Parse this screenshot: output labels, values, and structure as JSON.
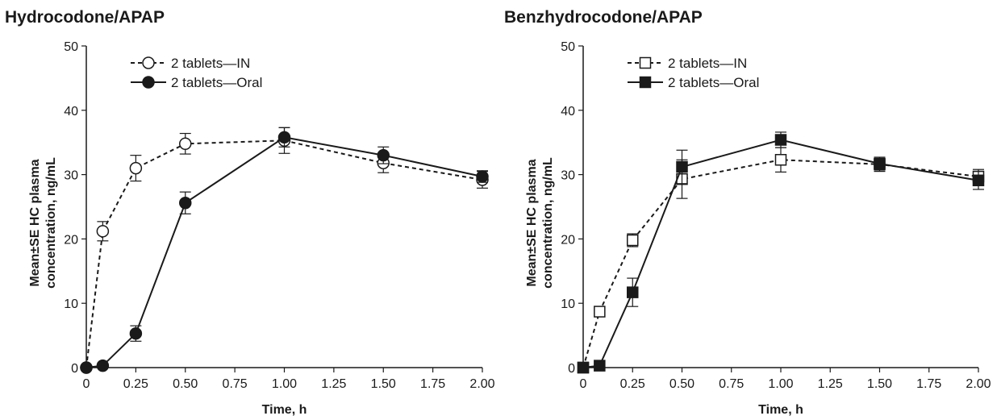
{
  "chart_data": [
    {
      "type": "line",
      "title": "Hydrocodone/APAP",
      "xlabel": "Time, h",
      "ylabel": [
        "Mean±SE HC plasma",
        "concentration, ng/mL"
      ],
      "xlim": [
        0,
        2
      ],
      "ylim": [
        0,
        50
      ],
      "xticks": [
        "0",
        "0.25",
        "0.50",
        "0.75",
        "1.00",
        "1.25",
        "1.50",
        "1.75",
        "2.00"
      ],
      "yticks": [
        "0",
        "10",
        "20",
        "30",
        "40",
        "50"
      ],
      "grid": false,
      "legend_position": "top-left",
      "series": [
        {
          "name": "2 tablets—IN",
          "marker": "circle-open",
          "line": "dashed",
          "x": [
            0,
            0.083,
            0.25,
            0.5,
            1.0,
            1.5,
            2.0
          ],
          "y": [
            0,
            21.2,
            31.0,
            34.8,
            35.3,
            31.8,
            29.2
          ],
          "err": [
            0,
            1.5,
            2.0,
            1.6,
            2.0,
            1.5,
            1.3
          ]
        },
        {
          "name": "2 tablets—Oral",
          "marker": "circle-filled",
          "line": "solid",
          "x": [
            0,
            0.083,
            0.25,
            0.5,
            1.0,
            1.5,
            2.0
          ],
          "y": [
            0,
            0.3,
            5.3,
            25.6,
            35.8,
            33.0,
            29.7
          ],
          "err": [
            0,
            0.2,
            1.2,
            1.7,
            1.5,
            1.3,
            0.9
          ]
        }
      ]
    },
    {
      "type": "line",
      "title": "Benzhydrocodone/APAP",
      "xlabel": "Time, h",
      "ylabel": [
        "Mean±SE HC plasma",
        "concentration, ng/mL"
      ],
      "xlim": [
        0,
        2
      ],
      "ylim": [
        0,
        50
      ],
      "xticks": [
        "0",
        "0.25",
        "0.50",
        "0.75",
        "1.00",
        "1.25",
        "1.50",
        "1.75",
        "2.00"
      ],
      "yticks": [
        "0",
        "10",
        "20",
        "30",
        "40",
        "50"
      ],
      "grid": false,
      "legend_position": "top-left",
      "series": [
        {
          "name": "2 tablets—IN",
          "marker": "square-open",
          "line": "dashed",
          "x": [
            0,
            0.083,
            0.25,
            0.5,
            1.0,
            1.5,
            2.0
          ],
          "y": [
            0,
            8.7,
            19.8,
            29.3,
            32.3,
            31.6,
            29.7
          ],
          "err": [
            0,
            0.3,
            1.0,
            3.0,
            1.9,
            1.1,
            1.1
          ]
        },
        {
          "name": "2 tablets—Oral",
          "marker": "square-filled",
          "line": "solid",
          "x": [
            0,
            0.083,
            0.25,
            0.5,
            1.0,
            1.5,
            2.0
          ],
          "y": [
            0,
            0.3,
            11.7,
            31.2,
            35.4,
            31.7,
            29.1
          ],
          "err": [
            0,
            0.2,
            2.2,
            2.6,
            1.2,
            1.0,
            1.4
          ]
        }
      ]
    }
  ]
}
